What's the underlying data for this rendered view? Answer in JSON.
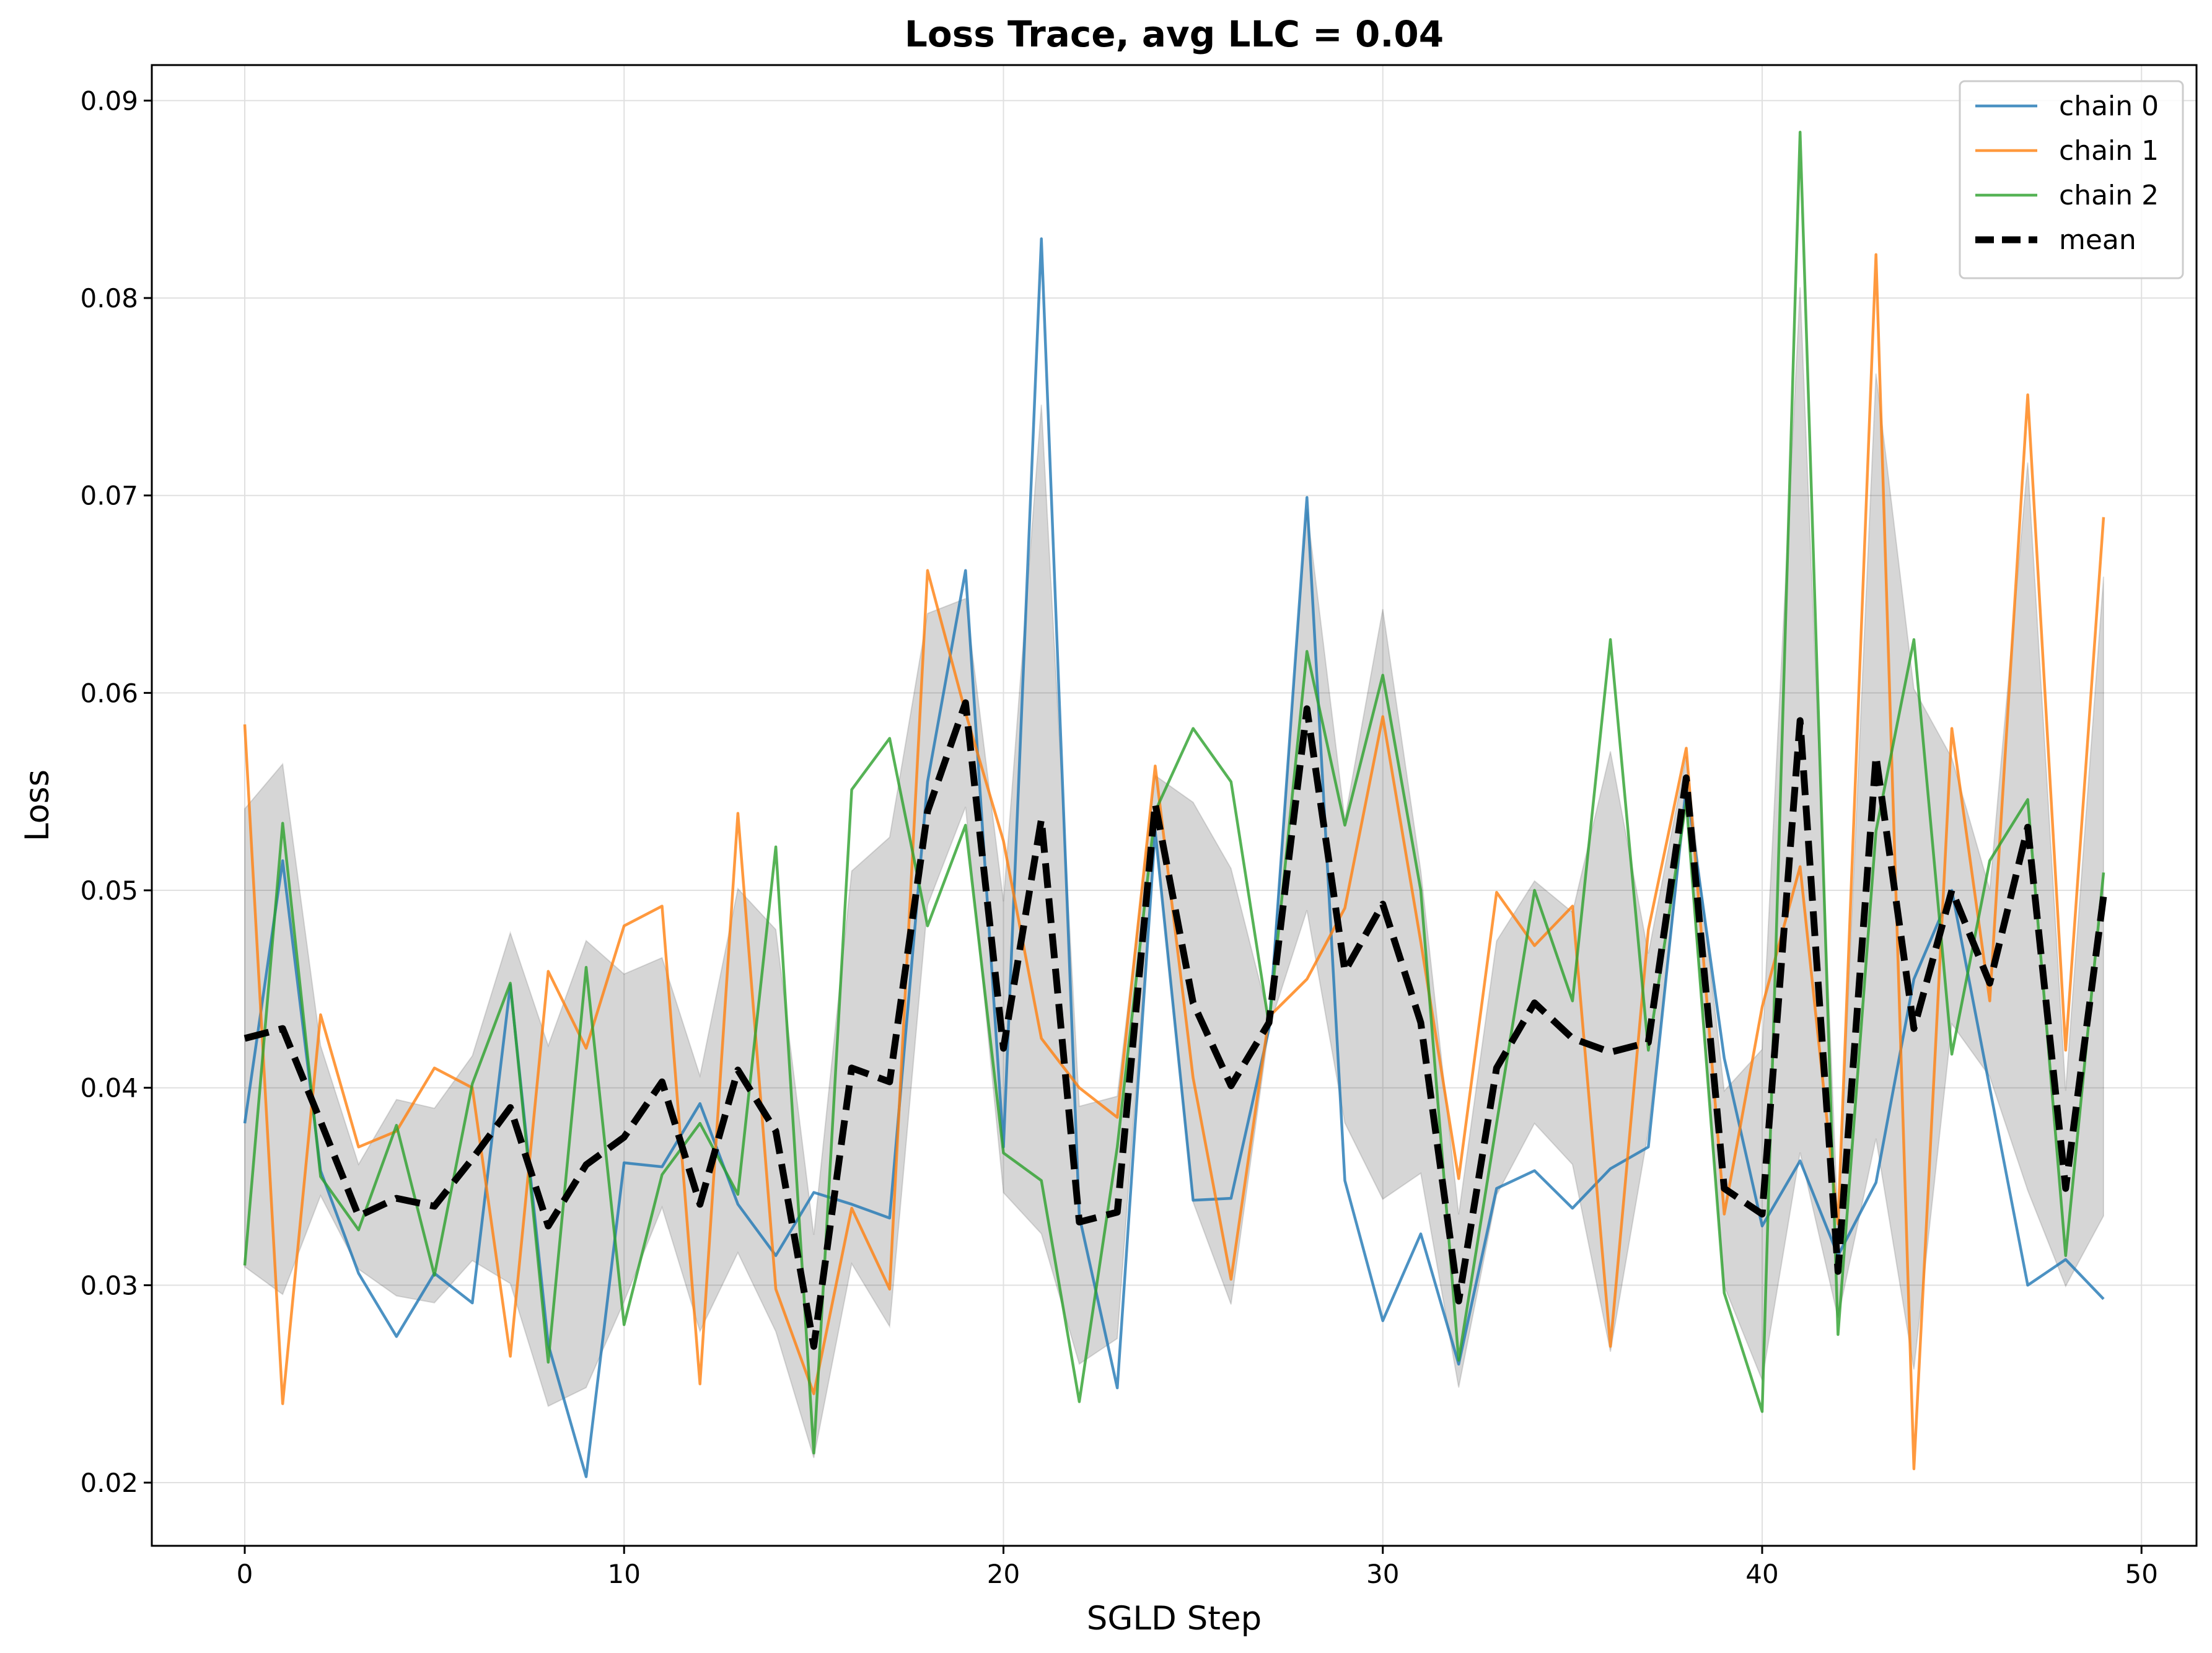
{
  "chart_data": {
    "type": "line",
    "title": "Loss Trace, avg LLC = 0.04",
    "xlabel": "SGLD Step",
    "ylabel": "Loss",
    "xlim": [
      -2.45,
      51.45
    ],
    "ylim": [
      0.0168,
      0.0918
    ],
    "xticks": [
      0,
      10,
      20,
      30,
      40,
      50
    ],
    "yticks": [
      0.02,
      0.03,
      0.04,
      0.05,
      0.06,
      0.07,
      0.08,
      0.09
    ],
    "ytick_labels": [
      "0.02",
      "0.03",
      "0.04",
      "0.05",
      "0.06",
      "0.07",
      "0.08",
      "0.09"
    ],
    "grid": true,
    "legend_position": "top-right",
    "x": [
      0,
      1,
      2,
      3,
      4,
      5,
      6,
      7,
      8,
      9,
      10,
      11,
      12,
      13,
      14,
      15,
      16,
      17,
      18,
      19,
      20,
      21,
      22,
      23,
      24,
      25,
      26,
      27,
      28,
      29,
      30,
      31,
      32,
      33,
      34,
      35,
      36,
      37,
      38,
      39,
      40,
      41,
      42,
      43,
      44,
      45,
      46,
      47,
      48,
      49
    ],
    "series": [
      {
        "name": "chain 0",
        "color": "#1f77b4",
        "style": "solid",
        "values": [
          0.0382,
          0.0515,
          0.0358,
          0.0306,
          0.0274,
          0.0306,
          0.0291,
          0.0452,
          0.027,
          0.0203,
          0.0362,
          0.036,
          0.0392,
          0.0341,
          0.0315,
          0.0347,
          0.0341,
          0.0334,
          0.0555,
          0.0662,
          0.037,
          0.083,
          0.0335,
          0.0248,
          0.053,
          0.0343,
          0.0344,
          0.043,
          0.0699,
          0.0353,
          0.0282,
          0.0326,
          0.026,
          0.0349,
          0.0358,
          0.0339,
          0.0359,
          0.037,
          0.0553,
          0.0415,
          0.033,
          0.0363,
          0.0315,
          0.0352,
          0.0455,
          0.05,
          0.04,
          0.03,
          0.0313,
          0.0293
        ]
      },
      {
        "name": "chain 1",
        "color": "#ff7f0e",
        "style": "solid",
        "values": [
          0.0584,
          0.024,
          0.0437,
          0.037,
          0.0378,
          0.041,
          0.04,
          0.0264,
          0.0459,
          0.042,
          0.0482,
          0.0492,
          0.025,
          0.0539,
          0.0298,
          0.0245,
          0.0339,
          0.0298,
          0.0662,
          0.059,
          0.0525,
          0.0425,
          0.04,
          0.0385,
          0.0563,
          0.0405,
          0.0303,
          0.0436,
          0.0455,
          0.0491,
          0.0588,
          0.0474,
          0.0354,
          0.0499,
          0.0472,
          0.0492,
          0.0269,
          0.048,
          0.0572,
          0.0336,
          0.0441,
          0.0512,
          0.0331,
          0.0822,
          0.0207,
          0.0582,
          0.0444,
          0.0751,
          0.0419,
          0.0689
        ]
      },
      {
        "name": "chain 2",
        "color": "#2ca02c",
        "style": "solid",
        "values": [
          0.031,
          0.0534,
          0.0355,
          0.0328,
          0.0381,
          0.0305,
          0.0402,
          0.0453,
          0.0261,
          0.0461,
          0.028,
          0.0356,
          0.0382,
          0.0346,
          0.0522,
          0.0215,
          0.0551,
          0.0577,
          0.0482,
          0.0533,
          0.0367,
          0.0353,
          0.0241,
          0.037,
          0.054,
          0.0582,
          0.0555,
          0.0432,
          0.0621,
          0.0533,
          0.0609,
          0.05,
          0.0262,
          0.0382,
          0.05,
          0.0444,
          0.0627,
          0.0419,
          0.0545,
          0.0296,
          0.0236,
          0.0884,
          0.0275,
          0.053,
          0.0627,
          0.0417,
          0.0515,
          0.0546,
          0.0315,
          0.0509
        ]
      },
      {
        "name": "mean",
        "color": "#000000",
        "style": "dashed",
        "values": [
          0.0425,
          0.043,
          0.0383,
          0.0335,
          0.0344,
          0.034,
          0.0364,
          0.039,
          0.033,
          0.0361,
          0.0375,
          0.0403,
          0.0341,
          0.0409,
          0.0378,
          0.0269,
          0.041,
          0.0403,
          0.054,
          0.0595,
          0.042,
          0.0536,
          0.0332,
          0.0337,
          0.0544,
          0.0443,
          0.0401,
          0.0433,
          0.0592,
          0.0459,
          0.0493,
          0.0433,
          0.0292,
          0.041,
          0.0443,
          0.0425,
          0.0418,
          0.0423,
          0.0557,
          0.0349,
          0.0336,
          0.0586,
          0.0307,
          0.0568,
          0.043,
          0.05,
          0.0453,
          0.0532,
          0.0349,
          0.0497
        ]
      }
    ]
  }
}
